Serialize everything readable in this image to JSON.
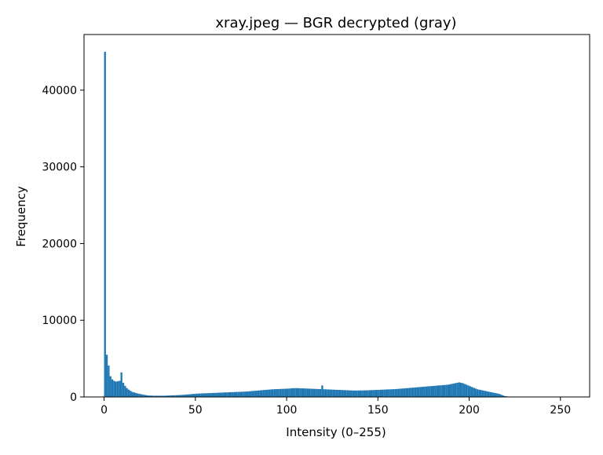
{
  "chart_data": {
    "type": "bar",
    "title": "xray.jpeg — BGR decrypted (gray)",
    "xlabel": "Intensity (0–255)",
    "ylabel": "Frequency",
    "xlim": [
      -11,
      266
    ],
    "ylim": [
      0,
      47250
    ],
    "xticks": [
      0,
      50,
      100,
      150,
      200,
      250
    ],
    "yticks": [
      0,
      10000,
      20000,
      30000,
      40000
    ],
    "grid": false,
    "legend": "none",
    "bar_color": "#1f77b4",
    "bins_start": 0,
    "bin_width": 1,
    "values": [
      45000,
      5500,
      4100,
      2700,
      2300,
      2100,
      2000,
      2050,
      2100,
      3200,
      1850,
      1450,
      1150,
      950,
      800,
      650,
      600,
      520,
      450,
      400,
      350,
      300,
      260,
      220,
      190,
      180,
      170,
      160,
      160,
      160,
      160,
      160,
      160,
      170,
      180,
      190,
      200,
      210,
      220,
      230,
      240,
      250,
      260,
      280,
      300,
      320,
      340,
      360,
      380,
      400,
      420,
      440,
      450,
      460,
      470,
      480,
      490,
      500,
      510,
      520,
      530,
      540,
      550,
      560,
      570,
      580,
      590,
      600,
      610,
      620,
      630,
      640,
      650,
      660,
      670,
      680,
      690,
      700,
      720,
      740,
      760,
      780,
      800,
      820,
      840,
      860,
      880,
      900,
      920,
      940,
      960,
      980,
      1000,
      1010,
      1020,
      1030,
      1040,
      1050,
      1060,
      1070,
      1080,
      1100,
      1120,
      1140,
      1150,
      1150,
      1140,
      1130,
      1120,
      1110,
      1100,
      1090,
      1080,
      1070,
      1060,
      1050,
      1040,
      1030,
      1020,
      1500,
      1000,
      990,
      980,
      970,
      960,
      950,
      940,
      930,
      920,
      910,
      900,
      890,
      880,
      870,
      860,
      850,
      840,
      840,
      840,
      840,
      850,
      850,
      860,
      860,
      870,
      880,
      890,
      900,
      910,
      920,
      930,
      940,
      950,
      960,
      970,
      980,
      990,
      1000,
      1010,
      1020,
      1040,
      1060,
      1080,
      1100,
      1120,
      1140,
      1160,
      1180,
      1200,
      1220,
      1240,
      1260,
      1280,
      1300,
      1320,
      1340,
      1360,
      1380,
      1400,
      1420,
      1440,
      1460,
      1480,
      1500,
      1520,
      1540,
      1560,
      1580,
      1600,
      1650,
      1700,
      1750,
      1800,
      1850,
      1900,
      1850,
      1800,
      1700,
      1600,
      1500,
      1400,
      1300,
      1200,
      1100,
      1000,
      950,
      900,
      850,
      800,
      750,
      700,
      650,
      600,
      550,
      500,
      450,
      400,
      300,
      200,
      120,
      80,
      60,
      40,
      30,
      20,
      15,
      10,
      8,
      6,
      5,
      4,
      4,
      3,
      3,
      2,
      2,
      2,
      1,
      1,
      1,
      1,
      1,
      1,
      1,
      1,
      1,
      1,
      1,
      1,
      1,
      1,
      1,
      1,
      1,
      0,
      0,
      0
    ]
  }
}
